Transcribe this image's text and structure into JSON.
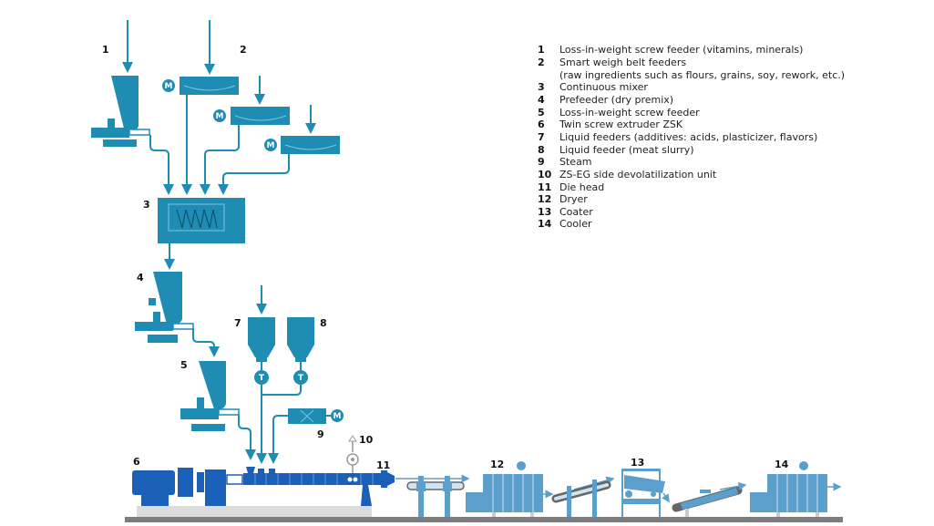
{
  "colors": {
    "feed_equipment": "#1f8cb3",
    "extruder": "#1a5fb8",
    "downstream": "#5b9fcc",
    "floor": "#7d7d7d",
    "base": "#dcdcdc"
  },
  "labels": {
    "n1": "1",
    "n2": "2",
    "n3": "3",
    "n4": "4",
    "n5": "5",
    "n6": "6",
    "n7": "7",
    "n8": "8",
    "n9": "9",
    "n10": "10",
    "n11": "11",
    "n12": "12",
    "n13": "13",
    "n14": "14",
    "motor": "M",
    "valve": "T"
  },
  "legend": [
    {
      "num": "1",
      "text": "Loss-in-weight screw feeder (vitamins, minerals)"
    },
    {
      "num": "2",
      "text": "Smart weigh belt feeders",
      "text2": "(raw ingredients such as flours, grains, soy, rework, etc.)"
    },
    {
      "num": "3",
      "text": "Continuous mixer"
    },
    {
      "num": "4",
      "text": "Prefeeder (dry premix)"
    },
    {
      "num": "5",
      "text": "Loss-in-weight screw feeder"
    },
    {
      "num": "6",
      "text": "Twin screw extruder ZSK"
    },
    {
      "num": "7",
      "text": "Liquid feeders (additives: acids, plasticizer, flavors)"
    },
    {
      "num": "8",
      "text": "Liquid feeder (meat slurry)"
    },
    {
      "num": "9",
      "text": "Steam"
    },
    {
      "num": "10",
      "text": "ZS-EG side devolatilization unit"
    },
    {
      "num": "11",
      "text": "Die head"
    },
    {
      "num": "12",
      "text": "Dryer"
    },
    {
      "num": "13",
      "text": "Coater"
    },
    {
      "num": "14",
      "text": "Cooler"
    }
  ]
}
